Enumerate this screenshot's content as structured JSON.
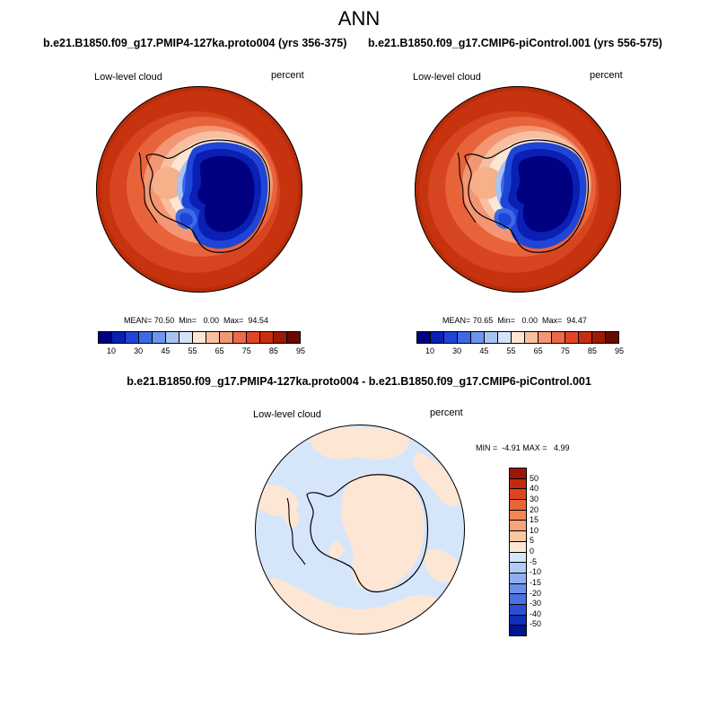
{
  "figure": {
    "title": "ANN",
    "left_case": "b.e21.B1850.f09_g17.PMIP4-127ka.proto004 (yrs 356-375)",
    "right_case": "b.e21.B1850.f09_g17.CMIP6-piControl.001 (yrs 556-575)",
    "diff_title": "b.e21.B1850.f09_g17.PMIP4-127ka.proto004 - b.e21.B1850.f09_g17.CMIP6-piControl.001"
  },
  "panels": {
    "left": {
      "variable": "Low-level cloud",
      "units": "percent",
      "stats": "MEAN= 70.50  Min=   0.00  Max=  94.54"
    },
    "right": {
      "variable": "Low-level cloud",
      "units": "percent",
      "stats": "MEAN= 70.65  Min=   0.00  Max=  94.47"
    },
    "diff": {
      "variable": "Low-level cloud",
      "units": "percent",
      "stats": "MIN =  -4.91 MAX =   4.99"
    }
  },
  "colorbars": {
    "absolute": {
      "labels": [
        "10",
        "30",
        "45",
        "55",
        "65",
        "75",
        "85",
        "95"
      ],
      "colors": [
        "#000080",
        "#0a1fb4",
        "#1f45d6",
        "#3c6ae6",
        "#6e95ee",
        "#a8c3f2",
        "#d4e3f7",
        "#fde6d4",
        "#f8c0a0",
        "#f29674",
        "#ec6a48",
        "#e24424",
        "#c72e10",
        "#9c1a05",
        "#6b0a00"
      ]
    },
    "difference": {
      "labels": [
        "50",
        "40",
        "30",
        "20",
        "15",
        "10",
        "5",
        "0",
        "-5",
        "-10",
        "-15",
        "-20",
        "-30",
        "-40",
        "-50"
      ],
      "colors": [
        "#a01406",
        "#c22a0c",
        "#dd4420",
        "#eb6436",
        "#f28556",
        "#f7a47c",
        "#fbc8a6",
        "#fde6d4",
        "#d5e6fb",
        "#b2cbf6",
        "#8eaef0",
        "#6b8fea",
        "#4a70e2",
        "#2a4fd2",
        "#0e2fb8",
        "#00168e"
      ]
    }
  },
  "chart_data": {
    "type": "map",
    "projection": "south polar stereographic",
    "maps": [
      {
        "name": "PMIP4-127ka.proto004",
        "field": "Low-level cloud",
        "units": "percent",
        "mean": 70.5,
        "min": 0.0,
        "max": 94.54
      },
      {
        "name": "CMIP6-piControl.001",
        "field": "Low-level cloud",
        "units": "percent",
        "mean": 70.65,
        "min": 0.0,
        "max": 94.47
      },
      {
        "name": "difference",
        "field": "Low-level cloud",
        "units": "percent",
        "min": -4.91,
        "max": 4.99
      }
    ]
  }
}
